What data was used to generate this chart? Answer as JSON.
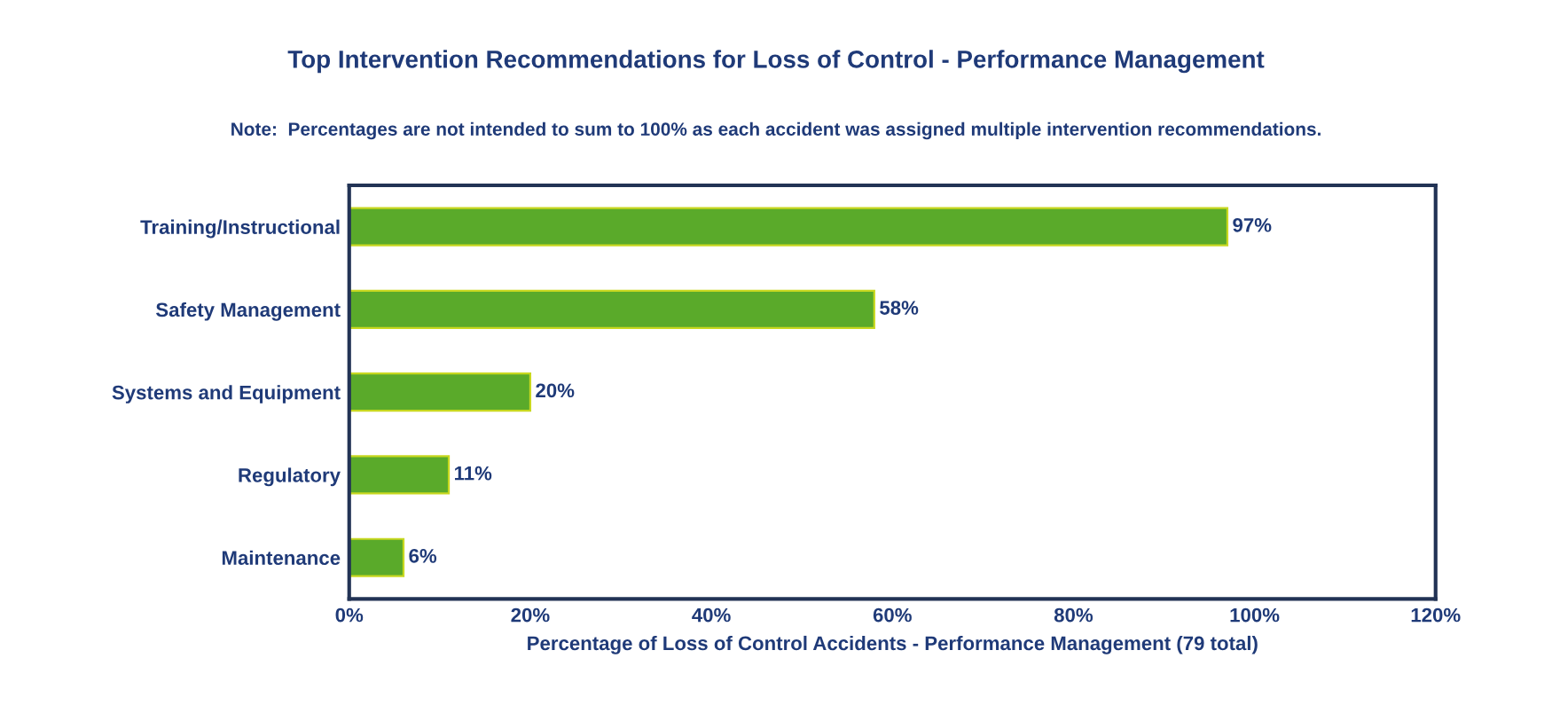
{
  "chart_data": {
    "type": "bar",
    "orientation": "horizontal",
    "title": "Top Intervention Recommendations for Loss of Control - Performance Management",
    "subtitle": "Note:  Percentages are not intended to sum to 100% as each accident was assigned multiple intervention recommendations.",
    "xlabel": "Percentage of Loss of Control Accidents - Performance Management (79 total)",
    "categories": [
      "Training/Instructional",
      "Safety Management",
      "Systems and Equipment",
      "Regulatory",
      "Maintenance"
    ],
    "values": [
      97,
      58,
      20,
      11,
      6
    ],
    "value_labels": [
      "97%",
      "58%",
      "20%",
      "11%",
      "6%"
    ],
    "color": "#5aaa2a",
    "xlim": [
      0,
      120
    ],
    "xticks": [
      {
        "value": 0,
        "label": "0%"
      },
      {
        "value": 20,
        "label": "20%"
      },
      {
        "value": 40,
        "label": "40%"
      },
      {
        "value": 60,
        "label": "60%"
      },
      {
        "value": 80,
        "label": "80%"
      },
      {
        "value": 100,
        "label": "100%"
      },
      {
        "value": 120,
        "label": "120%"
      }
    ],
    "grid": false,
    "legend": false
  }
}
